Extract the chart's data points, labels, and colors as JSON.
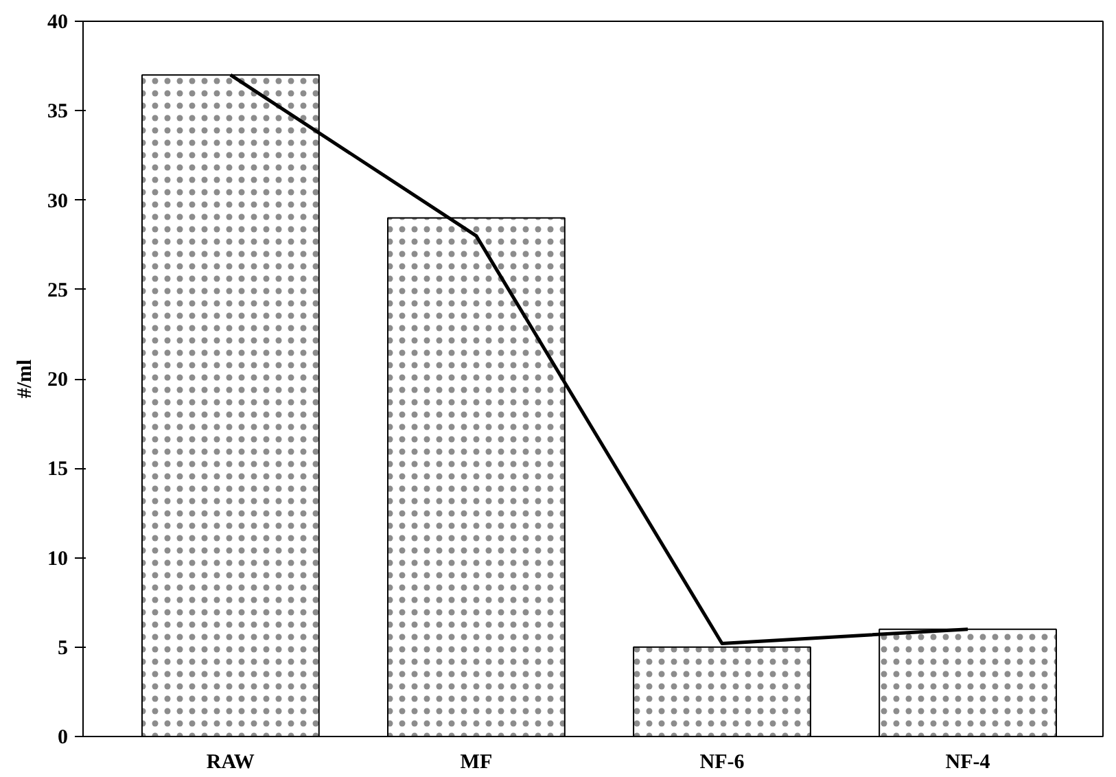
{
  "chart_data": {
    "type": "bar",
    "ylabel": "#/ml",
    "categories": [
      "RAW",
      "MF",
      "NF-6",
      "NF-4"
    ],
    "series": [
      {
        "color": "#ffffff",
        "values": [
          37,
          29,
          5,
          6
        ]
      },
      {
        "type": "line",
        "color": "#000000",
        "values": [
          37,
          28,
          5.2,
          6
        ]
      }
    ],
    "ylim": [
      0,
      40
    ],
    "yticks": [
      0,
      5,
      10,
      15,
      20,
      25,
      30,
      35,
      40
    ],
    "grid": false
  }
}
